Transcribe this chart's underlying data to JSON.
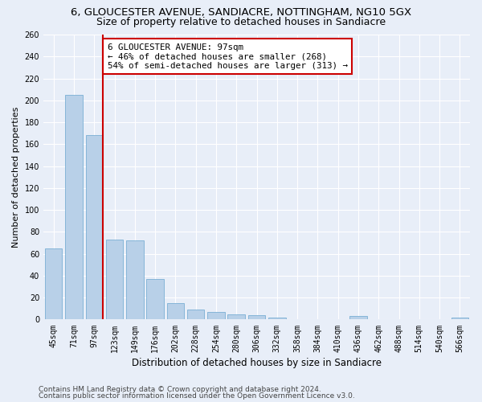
{
  "title": "6, GLOUCESTER AVENUE, SANDIACRE, NOTTINGHAM, NG10 5GX",
  "subtitle": "Size of property relative to detached houses in Sandiacre",
  "xlabel": "Distribution of detached houses by size in Sandiacre",
  "ylabel": "Number of detached properties",
  "categories": [
    "45sqm",
    "71sqm",
    "97sqm",
    "123sqm",
    "149sqm",
    "176sqm",
    "202sqm",
    "228sqm",
    "254sqm",
    "280sqm",
    "306sqm",
    "332sqm",
    "358sqm",
    "384sqm",
    "410sqm",
    "436sqm",
    "462sqm",
    "488sqm",
    "514sqm",
    "540sqm",
    "566sqm"
  ],
  "values": [
    65,
    205,
    168,
    73,
    72,
    37,
    15,
    9,
    7,
    5,
    4,
    2,
    0,
    0,
    0,
    3,
    0,
    0,
    0,
    0,
    2
  ],
  "bar_color": "#b8d0e8",
  "bar_edge_color": "#7aafd4",
  "highlight_index": 2,
  "highlight_color": "#cc0000",
  "ylim": [
    0,
    260
  ],
  "yticks": [
    0,
    20,
    40,
    60,
    80,
    100,
    120,
    140,
    160,
    180,
    200,
    220,
    240,
    260
  ],
  "annotation_text": "6 GLOUCESTER AVENUE: 97sqm\n← 46% of detached houses are smaller (268)\n54% of semi-detached houses are larger (313) →",
  "annotation_box_color": "#ffffff",
  "annotation_box_edge": "#cc0000",
  "footer_line1": "Contains HM Land Registry data © Crown copyright and database right 2024.",
  "footer_line2": "Contains public sector information licensed under the Open Government Licence v3.0.",
  "bg_color": "#e8eef8",
  "grid_color": "#ffffff",
  "title_fontsize": 9.5,
  "subtitle_fontsize": 9,
  "tick_fontsize": 7,
  "ylabel_fontsize": 8,
  "xlabel_fontsize": 8.5,
  "footer_fontsize": 6.5,
  "annotation_fontsize": 7.8
}
